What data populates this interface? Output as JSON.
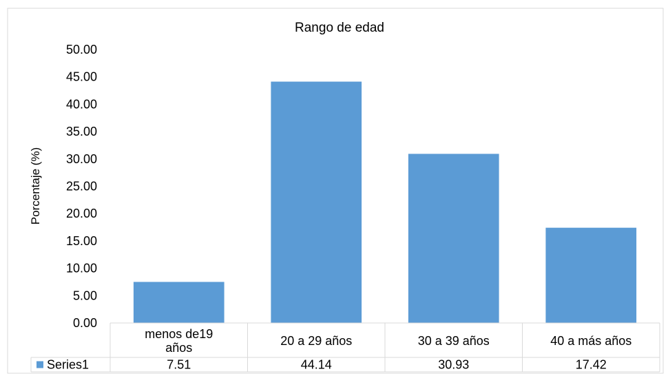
{
  "chart_data": {
    "type": "bar",
    "title": "Rango de edad",
    "ylabel": "Porcentaje (%)",
    "xlabel": "",
    "categories": [
      "menos de19 años",
      "20 a 29 años",
      "30 a 39 años",
      "40 a más años"
    ],
    "category_lines": [
      [
        "menos de19",
        "años"
      ],
      [
        "20 a 29 años"
      ],
      [
        "30 a 39 años"
      ],
      [
        "40 a más años"
      ]
    ],
    "series": [
      {
        "name": "Series1",
        "values": [
          7.51,
          44.14,
          30.93,
          17.42
        ],
        "value_labels": [
          "7.51",
          "44.14",
          "30.93",
          "17.42"
        ],
        "color": "#5b9bd5"
      }
    ],
    "ylim": [
      0,
      50
    ],
    "yticks": [
      "0.00",
      "5.00",
      "10.00",
      "15.00",
      "20.00",
      "25.00",
      "30.00",
      "35.00",
      "40.00",
      "45.00",
      "50.00"
    ],
    "grid": false,
    "data_table": true,
    "legend_in_table": true
  }
}
